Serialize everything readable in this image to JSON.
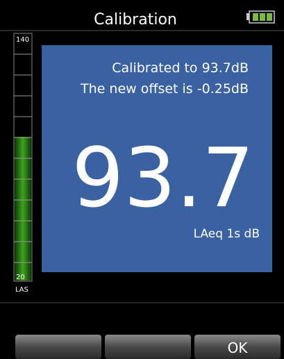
{
  "header": {
    "title": "Calibration"
  },
  "meter": {
    "max": "140",
    "min": "20",
    "mode": "LAS"
  },
  "panel": {
    "lines": [
      "Calibrated to 93.7dB",
      "The new offset is -0.25dB"
    ],
    "reading": "93.7",
    "unit": "LAeq 1s dB"
  },
  "softkeys": {
    "right": "OK"
  }
}
